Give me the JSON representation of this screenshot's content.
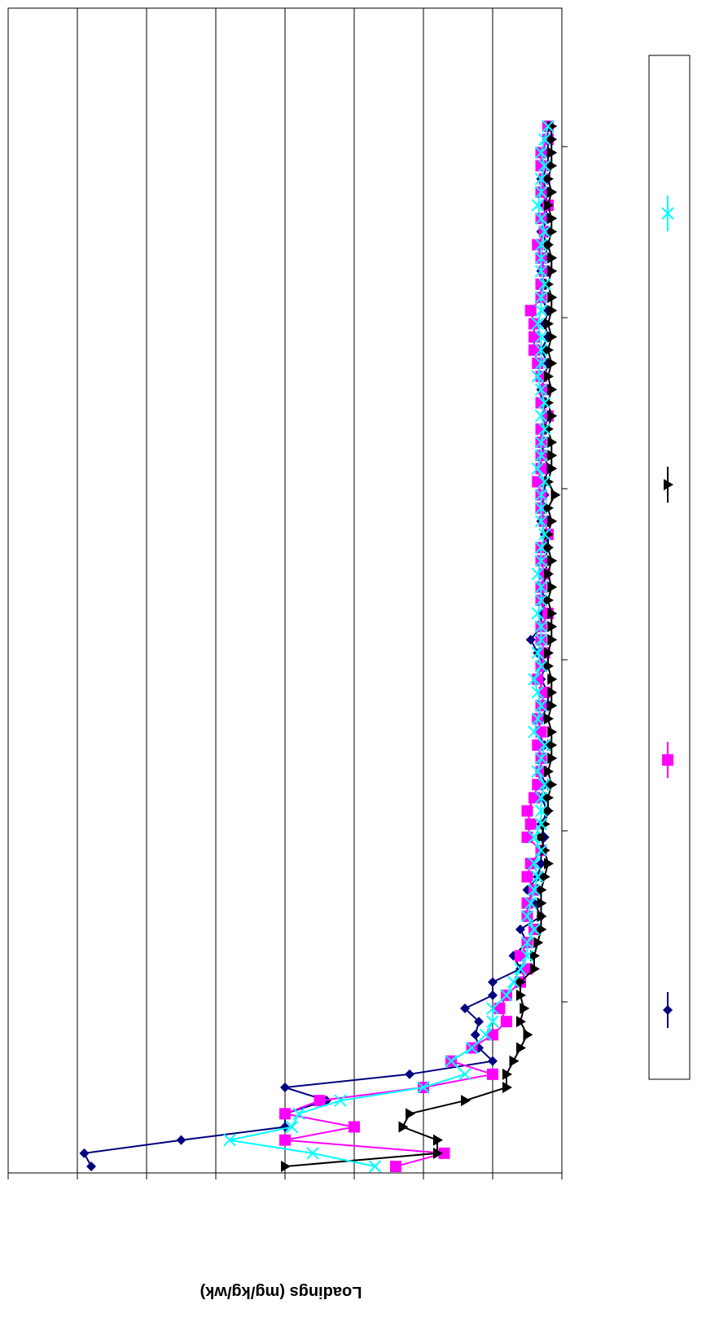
{
  "chart_data": {
    "type": "line",
    "title": "",
    "xlabel": "",
    "ylabel": "Loadings (mg/kg/wk)",
    "orientation": "rotated-180",
    "grid": true,
    "legend_placement": "right",
    "x": [
      1,
      2,
      3,
      4,
      5,
      6,
      7,
      8,
      9,
      10,
      11,
      12,
      13,
      14,
      15,
      16,
      17,
      18,
      19,
      20,
      21,
      22,
      23,
      24,
      25,
      26,
      27,
      28,
      29,
      30,
      31,
      32,
      33,
      34,
      35,
      36,
      37,
      38,
      39,
      40,
      41,
      42,
      43,
      44,
      45,
      46,
      47,
      48,
      49,
      50,
      51,
      52,
      53,
      54,
      55,
      56,
      57,
      58,
      59,
      60,
      61,
      62,
      63,
      64,
      65,
      66,
      67,
      68,
      69,
      70,
      71,
      72,
      73,
      74,
      75,
      76,
      77,
      78,
      79,
      80
    ],
    "series": [
      {
        "color": "#000080",
        "marker": "diamond",
        "values": [
          6.8,
          6.9,
          5.5,
          4.0,
          4.0,
          3.4,
          4.0,
          2.2,
          1.0,
          1.2,
          1.25,
          1.2,
          1.4,
          1.0,
          1.0,
          0.6,
          0.7,
          0.5,
          0.6,
          0.3,
          0.4,
          0.5,
          0.35,
          0.3,
          0.3,
          0.25,
          0.3,
          0.2,
          0.3,
          0.25,
          0.3,
          0.3,
          0.25,
          0.35,
          0.3,
          0.2,
          0.2,
          0.3,
          0.25,
          0.35,
          0.45,
          0.3,
          0.3,
          0.25,
          0.3,
          0.2,
          0.25,
          0.2,
          0.25,
          0.3,
          0.3,
          0.25,
          0.25,
          0.2,
          0.25,
          0.3,
          0.25,
          0.2,
          0.3,
          0.3,
          0.25,
          0.2,
          0.3,
          0.2,
          0.25,
          0.2,
          0.3,
          0.25,
          0.3,
          0.25,
          0.2,
          0.3,
          0.2,
          0.25,
          0.2,
          0.3,
          0.2,
          0.2,
          0.2,
          0.2
        ]
      },
      {
        "color": "#ff00ff",
        "marker": "square",
        "values": [
          2.4,
          1.7,
          4.0,
          3.0,
          4.0,
          3.5,
          2.0,
          1.0,
          1.6,
          1.3,
          1.0,
          0.8,
          0.9,
          0.8,
          0.6,
          0.5,
          0.6,
          0.5,
          0.4,
          0.5,
          0.5,
          0.4,
          0.5,
          0.45,
          0.3,
          0.5,
          0.45,
          0.5,
          0.4,
          0.35,
          0.3,
          0.3,
          0.35,
          0.3,
          0.35,
          0.3,
          0.25,
          0.35,
          0.3,
          0.25,
          0.3,
          0.3,
          0.2,
          0.3,
          0.3,
          0.25,
          0.3,
          0.3,
          0.2,
          0.25,
          0.3,
          0.3,
          0.35,
          0.3,
          0.3,
          0.3,
          0.3,
          0.2,
          0.3,
          0.25,
          0.3,
          0.35,
          0.4,
          0.4,
          0.4,
          0.45,
          0.3,
          0.3,
          0.25,
          0.3,
          0.35,
          0.25,
          0.3,
          0.2,
          0.3,
          0.25,
          0.3,
          0.3,
          0.2,
          0.2
        ]
      },
      {
        "color": "#000000",
        "marker": "triangle",
        "values": [
          4.0,
          1.8,
          1.8,
          2.3,
          2.2,
          1.4,
          0.8,
          0.8,
          0.7,
          0.6,
          0.5,
          0.6,
          0.55,
          0.6,
          0.6,
          0.4,
          0.4,
          0.35,
          0.3,
          0.3,
          0.3,
          0.3,
          0.25,
          0.2,
          0.25,
          0.3,
          0.25,
          0.2,
          0.2,
          0.15,
          0.2,
          0.15,
          0.15,
          0.15,
          0.2,
          0.15,
          0.15,
          0.15,
          0.2,
          0.2,
          0.15,
          0.15,
          0.15,
          0.2,
          0.15,
          0.2,
          0.15,
          0.2,
          0.2,
          0.15,
          0.2,
          0.1,
          0.2,
          0.15,
          0.15,
          0.15,
          0.2,
          0.15,
          0.2,
          0.15,
          0.2,
          0.15,
          0.2,
          0.15,
          0.2,
          0.15,
          0.15,
          0.2,
          0.15,
          0.15,
          0.2,
          0.15,
          0.15,
          0.2,
          0.15,
          0.2,
          0.15,
          0.15,
          0.15,
          0.15
        ]
      },
      {
        "color": "#00ffff",
        "marker": "x",
        "values": [
          2.7,
          3.6,
          4.8,
          3.9,
          3.8,
          3.2,
          2.0,
          1.4,
          1.6,
          1.3,
          1.1,
          1.0,
          1.0,
          0.8,
          0.7,
          0.6,
          0.5,
          0.5,
          0.4,
          0.5,
          0.45,
          0.4,
          0.35,
          0.4,
          0.3,
          0.4,
          0.3,
          0.3,
          0.3,
          0.25,
          0.35,
          0.3,
          0.25,
          0.4,
          0.35,
          0.3,
          0.35,
          0.4,
          0.3,
          0.35,
          0.3,
          0.3,
          0.35,
          0.3,
          0.3,
          0.35,
          0.3,
          0.3,
          0.25,
          0.3,
          0.3,
          0.3,
          0.25,
          0.35,
          0.3,
          0.3,
          0.25,
          0.3,
          0.25,
          0.3,
          0.35,
          0.3,
          0.3,
          0.3,
          0.35,
          0.3,
          0.3,
          0.25,
          0.3,
          0.3,
          0.3,
          0.25,
          0.3,
          0.35,
          0.3,
          0.3,
          0.25,
          0.3,
          0.25,
          0.2
        ]
      }
    ],
    "ylim": [
      0,
      8
    ]
  }
}
